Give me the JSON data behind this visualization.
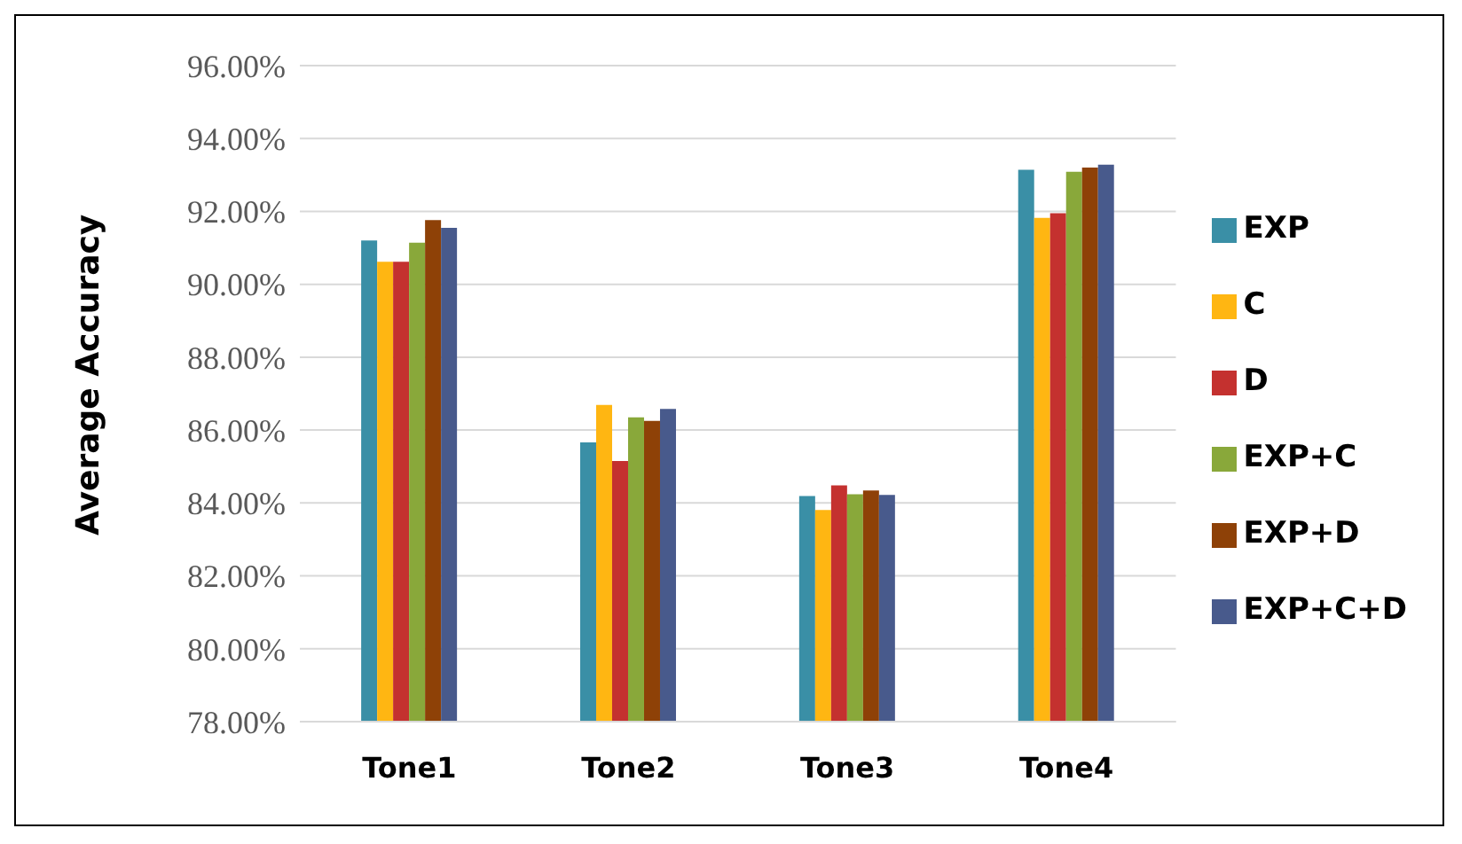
{
  "chart_data": {
    "type": "bar",
    "ylabel": "Average Accuracy",
    "categories": [
      "Tone1",
      "Tone2",
      "Tone3",
      "Tone4"
    ],
    "series": [
      {
        "name": "EXP",
        "color": "#3a8fa6",
        "values": [
          91.2,
          85.66,
          84.19,
          93.14
        ]
      },
      {
        "name": "C",
        "color": "#ffb612",
        "values": [
          90.62,
          86.69,
          83.81,
          91.82
        ]
      },
      {
        "name": "D",
        "color": "#c4312f",
        "values": [
          90.62,
          85.15,
          84.48,
          91.95
        ]
      },
      {
        "name": "EXP+C",
        "color": "#89a83a",
        "values": [
          91.14,
          86.35,
          84.24,
          93.09
        ]
      },
      {
        "name": "EXP+D",
        "color": "#8e4107",
        "values": [
          91.76,
          86.25,
          84.34,
          93.2
        ]
      },
      {
        "name": "EXP+C+D",
        "color": "#485a8c",
        "values": [
          91.55,
          86.58,
          84.22,
          93.28
        ]
      }
    ],
    "ylim": [
      78,
      96
    ],
    "yticks": [
      {
        "value": 78,
        "label": "78.00%"
      },
      {
        "value": 80,
        "label": "80.00%"
      },
      {
        "value": 82,
        "label": "82.00%"
      },
      {
        "value": 84,
        "label": "84.00%"
      },
      {
        "value": 86,
        "label": "86.00%"
      },
      {
        "value": 88,
        "label": "88.00%"
      },
      {
        "value": 90,
        "label": "90.00%"
      },
      {
        "value": 92,
        "label": "92.00%"
      },
      {
        "value": 94,
        "label": "94.00%"
      },
      {
        "value": 96,
        "label": "96.00%"
      }
    ],
    "grid": "y",
    "legend": "right"
  }
}
